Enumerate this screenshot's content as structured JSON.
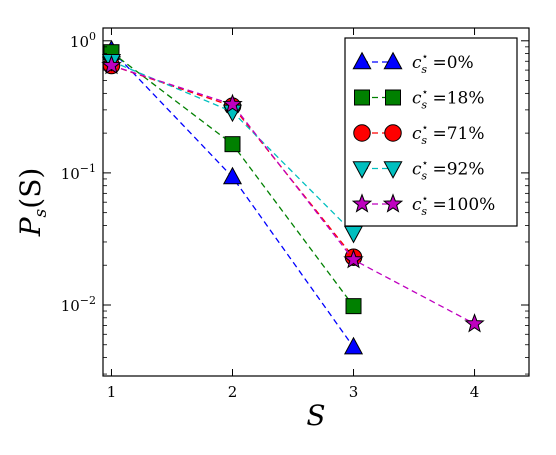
{
  "chart_data": {
    "type": "line",
    "title": "",
    "xlabel": "S",
    "ylabel": "P_s(S)",
    "ylabel_display": {
      "main": "P",
      "sub": "s",
      "arg": "(S)"
    },
    "yscale": "log",
    "xlim": [
      0.93,
      4.45
    ],
    "ylim": [
      0.0029,
      1.25
    ],
    "xticks": [
      1,
      2,
      3,
      4
    ],
    "xtick_labels": [
      "1",
      "2",
      "3",
      "4"
    ],
    "yticks": [
      0.01,
      0.1,
      1
    ],
    "ytick_labels": [
      {
        "base": "10",
        "exp": "−2"
      },
      {
        "base": "10",
        "exp": "−1"
      },
      {
        "base": "10",
        "exp": "0"
      }
    ],
    "grid": false,
    "legend_position": "top-right",
    "series": [
      {
        "name": "c_s* =0%",
        "label": {
          "sym": "c",
          "sub": "s",
          "sup": "⋆",
          "rest": " =0%"
        },
        "color": "#0000ff",
        "marker": "triangle-up",
        "x": [
          1,
          2,
          3
        ],
        "y": [
          0.85,
          0.093,
          0.0048
        ]
      },
      {
        "name": "c_s* =18%",
        "label": {
          "sym": "c",
          "sub": "s",
          "sup": "⋆",
          "rest": " =18%"
        },
        "color": "#008000",
        "marker": "square",
        "x": [
          1,
          2,
          3
        ],
        "y": [
          0.82,
          0.165,
          0.0098
        ]
      },
      {
        "name": "c_s* =71%",
        "label": {
          "sym": "c",
          "sub": "s",
          "sup": "⋆",
          "rest": " =71%"
        },
        "color": "#ff0000",
        "marker": "circle",
        "x": [
          1,
          2,
          3
        ],
        "y": [
          0.65,
          0.32,
          0.023
        ]
      },
      {
        "name": "c_s* =92%",
        "label": {
          "sym": "c",
          "sub": "s",
          "sup": "⋆",
          "rest": " =92%"
        },
        "color": "#00bfbf",
        "marker": "triangle-down",
        "x": [
          1,
          2,
          3
        ],
        "y": [
          0.7,
          0.29,
          0.035
        ]
      },
      {
        "name": "c_s* =100%",
        "label": {
          "sym": "c",
          "sub": "s",
          "sup": "⋆",
          "rest": " =100%"
        },
        "color": "#bf00bf",
        "marker": "star",
        "x": [
          1,
          2,
          3,
          4
        ],
        "y": [
          0.65,
          0.33,
          0.022,
          0.0072
        ]
      }
    ]
  }
}
